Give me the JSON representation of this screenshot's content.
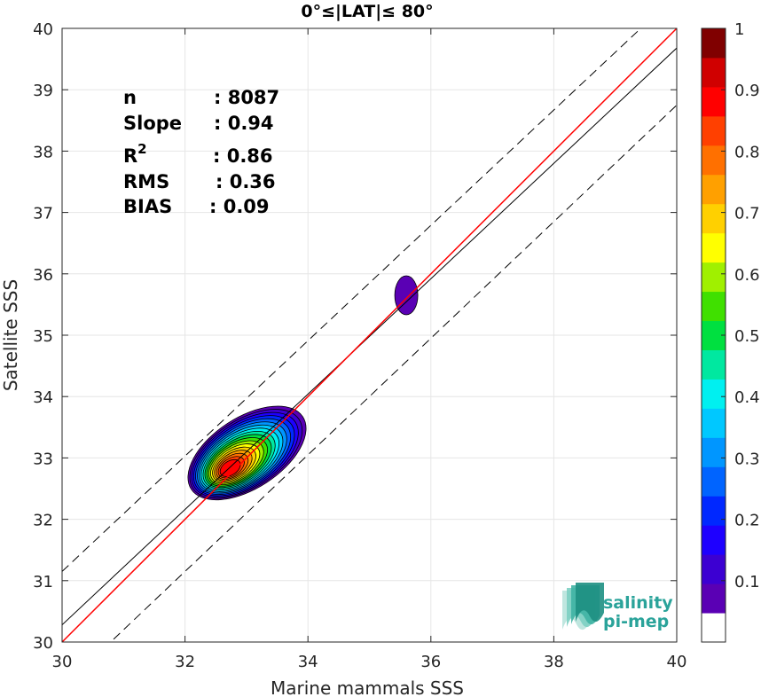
{
  "chart_data": {
    "type": "heatmap",
    "title": "0°≤|LAT|≤ 80°",
    "xlabel": "Marine mammals SSS",
    "ylabel": "Satellite SSS",
    "xlim": [
      30,
      40
    ],
    "ylim": [
      30,
      40
    ],
    "xticks": [
      "30",
      "32",
      "34",
      "36",
      "38",
      "40"
    ],
    "yticks": [
      "30",
      "31",
      "32",
      "33",
      "34",
      "35",
      "36",
      "37",
      "38",
      "39",
      "40"
    ],
    "grid": true,
    "stats": [
      {
        "name": "n",
        "value": ": 8087"
      },
      {
        "name": "Slope",
        "value": ": 0.94"
      },
      {
        "name": "R",
        "sup": "2",
        "value": ": 0.86"
      },
      {
        "name": "RMS",
        "value": ": 0.36"
      },
      {
        "name": "BIAS",
        "value": ": 0.09"
      }
    ],
    "lines": {
      "identity": {
        "from": [
          30,
          30
        ],
        "to": [
          40,
          40
        ],
        "color": "#ff0000"
      },
      "fit": {
        "from": [
          30,
          30.28
        ],
        "to": [
          40,
          39.68
        ],
        "color": "#000000"
      },
      "upper_bound": {
        "from": [
          30,
          31.15
        ],
        "to": [
          40,
          40.55
        ],
        "style": "dashed"
      },
      "lower_bound": {
        "from": [
          30,
          29.25
        ],
        "to": [
          40,
          38.75
        ],
        "style": "dashed"
      }
    },
    "density_peaks": [
      {
        "x": 32.72,
        "y": 32.82,
        "level": 1.0
      },
      {
        "x": 35.6,
        "y": 35.65,
        "level": 0.1
      }
    ],
    "colorbar": {
      "range": [
        0,
        1
      ],
      "ticks": [
        "0.1",
        "0.2",
        "0.3",
        "0.4",
        "0.5",
        "0.6",
        "0.7",
        "0.8",
        "0.9",
        "1"
      ],
      "colors": [
        "#ffffff",
        "#5a00b4",
        "#3c00d2",
        "#1e00ff",
        "#0028ff",
        "#0064ff",
        "#0096ff",
        "#00c8ff",
        "#00f0f0",
        "#00e8a0",
        "#00e040",
        "#40e000",
        "#a0f000",
        "#ffff00",
        "#ffd000",
        "#ffa000",
        "#ff7000",
        "#ff4000",
        "#ff0000",
        "#d00000",
        "#800000"
      ]
    },
    "logo": {
      "line1": "salinity",
      "line2": "pi-mep"
    }
  }
}
